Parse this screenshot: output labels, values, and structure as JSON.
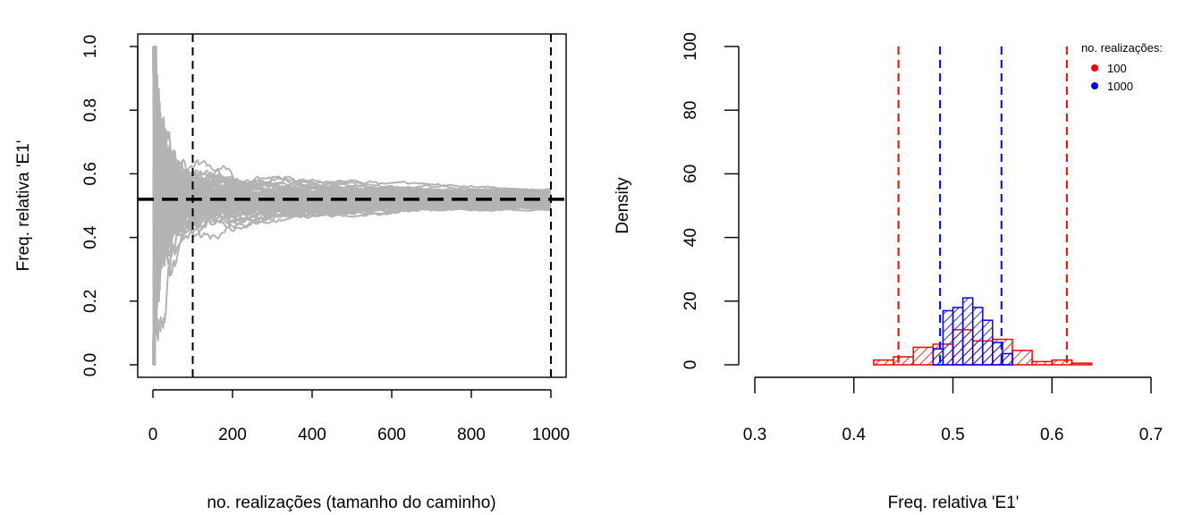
{
  "chart_data": [
    {
      "type": "line",
      "xlabel": "no. realizações (tamanho do caminho)",
      "ylabel": "Freq. relativa 'E1'",
      "xlim": [
        1,
        1000
      ],
      "ylim": [
        0,
        1
      ],
      "x_ticks": [
        "0",
        "200",
        "400",
        "600",
        "800",
        "1000"
      ],
      "y_ticks": [
        "0.0",
        "0.2",
        "0.4",
        "0.6",
        "0.8",
        "1.0"
      ],
      "series_color": "#b3b3b3",
      "num_paths": 100,
      "path_start_range": [
        0,
        1
      ],
      "path_band": {
        "x": [
          1,
          10,
          30,
          50,
          100,
          150,
          200,
          300,
          400,
          600,
          800,
          1000
        ],
        "lower": [
          0.0,
          0.18,
          0.27,
          0.33,
          0.38,
          0.41,
          0.43,
          0.45,
          0.46,
          0.47,
          0.48,
          0.485
        ],
        "upper": [
          1.0,
          0.8,
          0.78,
          0.72,
          0.66,
          0.64,
          0.62,
          0.6,
          0.59,
          0.57,
          0.56,
          0.555
        ]
      },
      "reference_line": {
        "y": 0.52,
        "style": "dashed",
        "color": "#000000"
      },
      "vertical_lines": [
        {
          "x": 100,
          "style": "dashed",
          "color": "#000000"
        },
        {
          "x": 1000,
          "style": "dashed",
          "color": "#000000"
        }
      ]
    },
    {
      "type": "histogram",
      "xlabel": "Freq. relativa 'E1'",
      "ylabel": "Density",
      "xlim": [
        0.3,
        0.7
      ],
      "ylim": [
        0,
        100
      ],
      "x_ticks": [
        "0.3",
        "0.4",
        "0.5",
        "0.6",
        "0.7"
      ],
      "y_ticks": [
        "0",
        "20",
        "40",
        "60",
        "80",
        "100"
      ],
      "series": [
        {
          "name": "100",
          "color": "#ff0000",
          "bins": [
            {
              "x0": 0.42,
              "x1": 0.44,
              "density": 1.5
            },
            {
              "x0": 0.44,
              "x1": 0.46,
              "density": 2.5
            },
            {
              "x0": 0.46,
              "x1": 0.48,
              "density": 5.5
            },
            {
              "x0": 0.48,
              "x1": 0.5,
              "density": 6.5
            },
            {
              "x0": 0.5,
              "x1": 0.52,
              "density": 11.0
            },
            {
              "x0": 0.52,
              "x1": 0.54,
              "density": 7.5
            },
            {
              "x0": 0.54,
              "x1": 0.56,
              "density": 8.0
            },
            {
              "x0": 0.56,
              "x1": 0.58,
              "density": 4.5
            },
            {
              "x0": 0.58,
              "x1": 0.6,
              "density": 1.0
            },
            {
              "x0": 0.6,
              "x1": 0.62,
              "density": 1.5
            },
            {
              "x0": 0.62,
              "x1": 0.64,
              "density": 0.5
            }
          ],
          "quantile_lines": [
            0.445,
            0.615
          ]
        },
        {
          "name": "1000",
          "color": "#0000ff",
          "bins": [
            {
              "x0": 0.48,
              "x1": 0.49,
              "density": 5.0
            },
            {
              "x0": 0.49,
              "x1": 0.5,
              "density": 17.0
            },
            {
              "x0": 0.5,
              "x1": 0.51,
              "density": 18.0
            },
            {
              "x0": 0.51,
              "x1": 0.52,
              "density": 21.0
            },
            {
              "x0": 0.52,
              "x1": 0.53,
              "density": 18.0
            },
            {
              "x0": 0.53,
              "x1": 0.54,
              "density": 14.0
            },
            {
              "x0": 0.54,
              "x1": 0.55,
              "density": 7.0
            },
            {
              "x0": 0.55,
              "x1": 0.56,
              "density": 3.5
            }
          ],
          "quantile_lines": [
            0.487,
            0.549
          ]
        }
      ],
      "legend": {
        "title": "no. realizações:",
        "position": "top-right",
        "entries": [
          "100",
          "1000"
        ]
      }
    }
  ]
}
